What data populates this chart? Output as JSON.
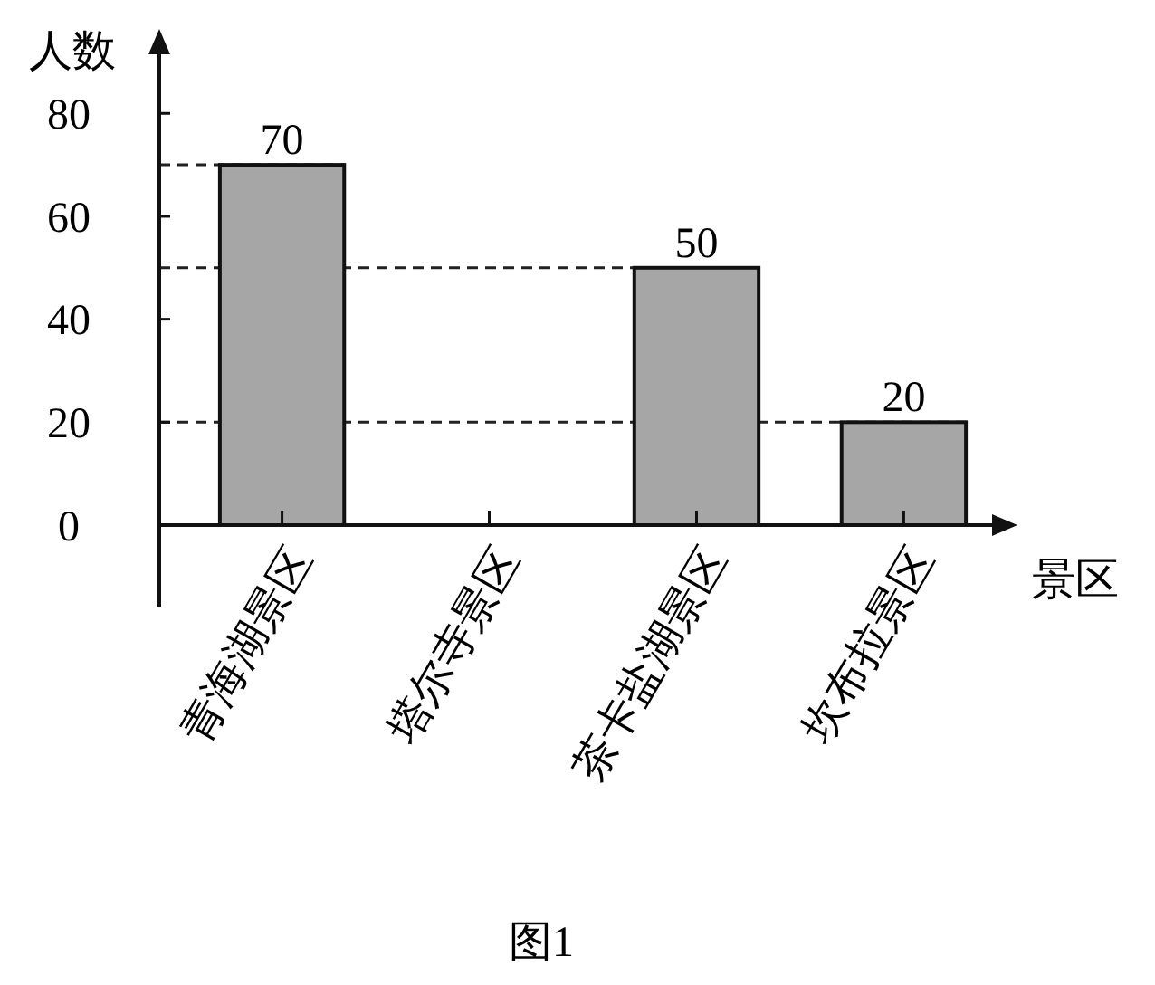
{
  "chart_data": {
    "type": "bar",
    "categories": [
      "青海湖景区",
      "塔尔寺景区",
      "茶卡盐湖景区",
      "坎布拉景区"
    ],
    "values": [
      70,
      null,
      50,
      20
    ],
    "color": "#a6a6a6",
    "ylim": [
      0,
      95
    ],
    "yticks": [
      0,
      20,
      40,
      60,
      80
    ],
    "ylabel": "人数",
    "xlabel": "景区",
    "data_labels": true,
    "grid": false,
    "ref_lines": [
      {
        "axis": "y",
        "value": 70,
        "line_style": "dashed"
      },
      {
        "axis": "y",
        "value": 50,
        "line_style": "dashed"
      },
      {
        "axis": "y",
        "value": 20,
        "line_style": "dashed"
      }
    ],
    "annotations": [
      "图1"
    ]
  }
}
